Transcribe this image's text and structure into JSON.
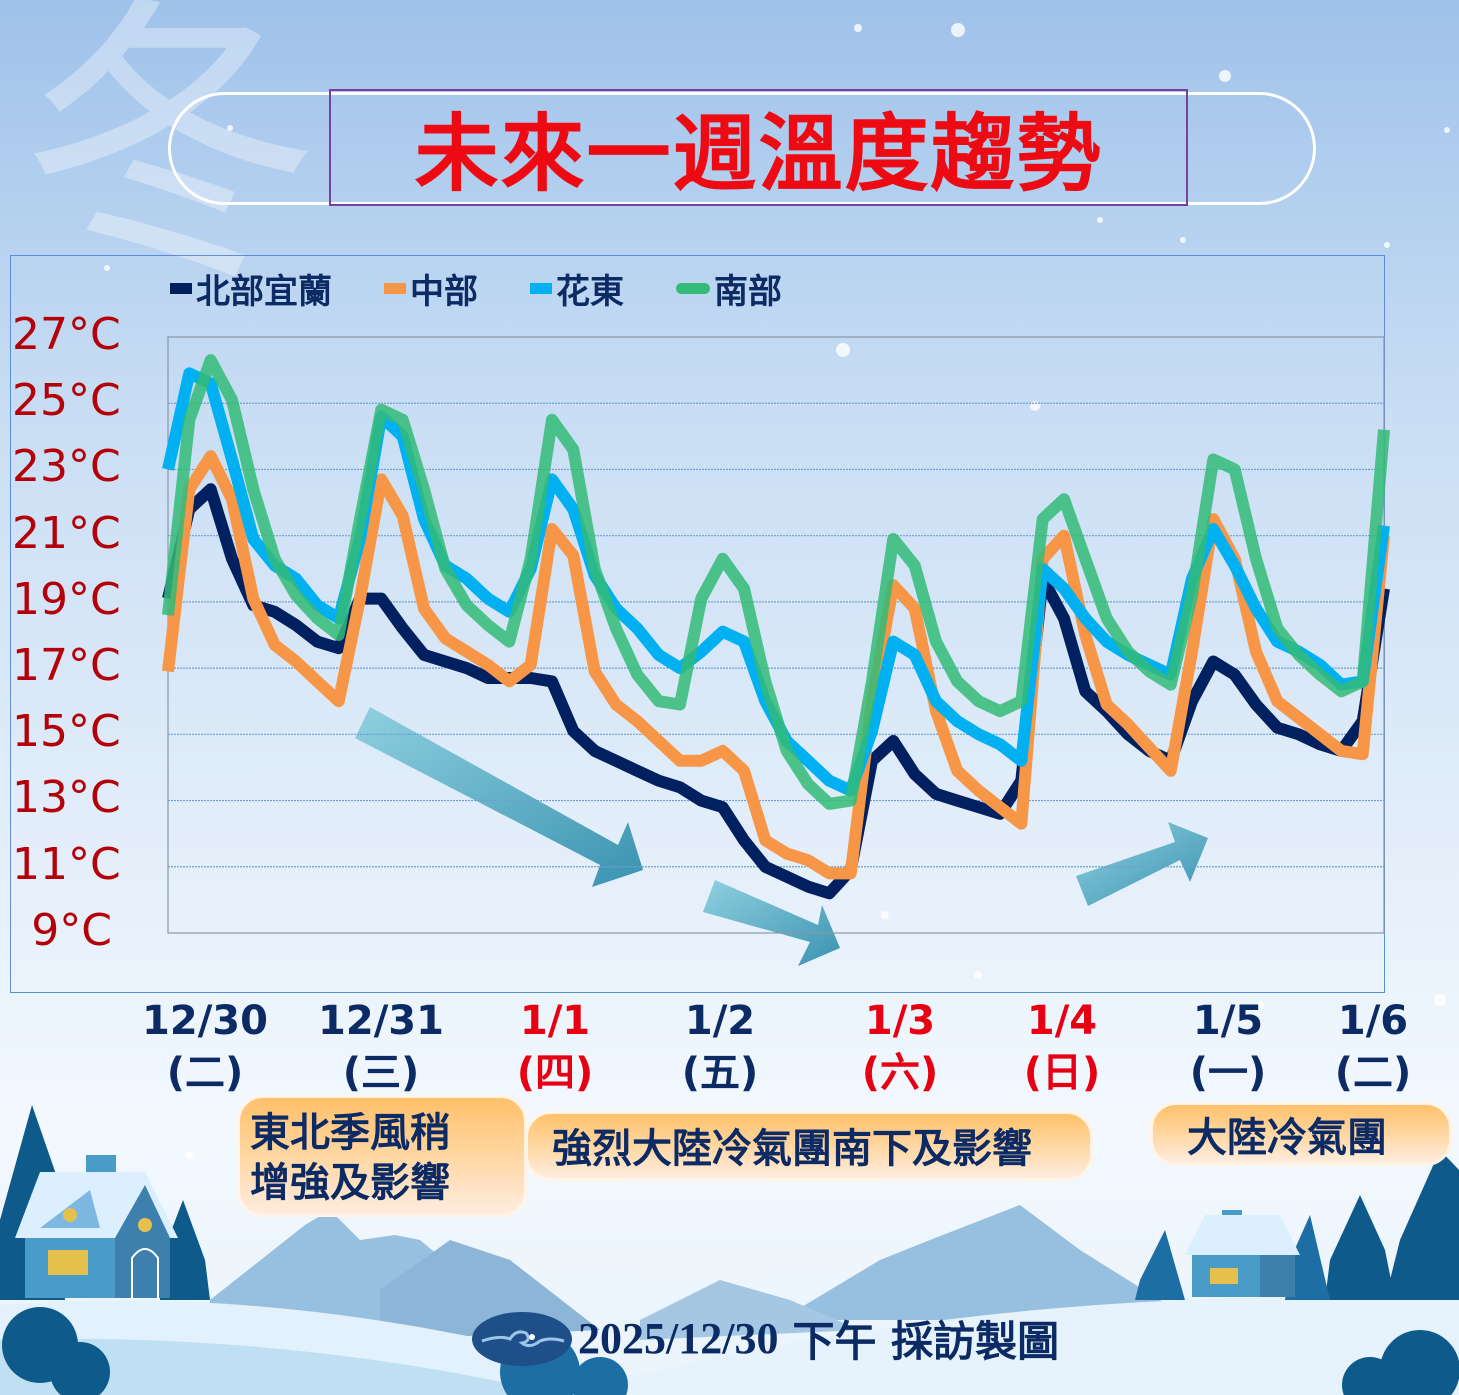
{
  "title": "未來一週溫度趨勢",
  "decor_character": "冬",
  "legend": [
    {
      "label": "北部宜蘭",
      "color": "#002060"
    },
    {
      "label": "中部",
      "color": "#f79646"
    },
    {
      "label": "花東",
      "color": "#00b0f0"
    },
    {
      "label": "南部",
      "color": "#33bb77"
    }
  ],
  "chart_data": {
    "type": "line",
    "ylim": [
      9,
      27
    ],
    "yticks": [
      "27°C",
      "25°C",
      "23°C",
      "21°C",
      "19°C",
      "17°C",
      "15°C",
      "13°C",
      "11°C",
      "9°C"
    ],
    "grid": true,
    "legend_position": "top-left",
    "x_tick_labels": [
      {
        "date": "12/30",
        "weekday": "(二)",
        "holiday": false
      },
      {
        "date": "12/31",
        "weekday": "(三)",
        "holiday": false
      },
      {
        "date": "1/1",
        "weekday": "(四)",
        "holiday": true
      },
      {
        "date": "1/2",
        "weekday": "(五)",
        "holiday": false
      },
      {
        "date": "1/3",
        "weekday": "(六)",
        "holiday": true
      },
      {
        "date": "1/4",
        "weekday": "(日)",
        "holiday": true
      },
      {
        "date": "1/5",
        "weekday": "(一)",
        "holiday": false
      },
      {
        "date": "1/6",
        "weekday": "(二)",
        "holiday": false
      }
    ],
    "series": [
      {
        "name": "北部宜蘭",
        "color": "#002060",
        "values": [
          19.1,
          21.8,
          22.4,
          20.3,
          18.9,
          18.7,
          18.3,
          17.8,
          17.6,
          19.1,
          19.1,
          18.2,
          17.4,
          17.2,
          17.0,
          16.7,
          16.7,
          16.7,
          16.6,
          15.1,
          14.5,
          14.2,
          13.9,
          13.6,
          13.4,
          13.0,
          12.8,
          11.8,
          11.0,
          10.7,
          10.4,
          10.2,
          10.9,
          14.2,
          14.8,
          13.8,
          13.2,
          13.0,
          12.8,
          12.6,
          13.6,
          19.7,
          18.5,
          16.3,
          15.7,
          15.0,
          14.5,
          14.2,
          16.0,
          17.2,
          16.8,
          15.9,
          15.2,
          15.0,
          14.7,
          14.5,
          15.4,
          19.4
        ]
      },
      {
        "name": "中部",
        "color": "#f79646",
        "values": [
          16.9,
          22.4,
          23.4,
          22.1,
          19.1,
          17.7,
          17.2,
          16.6,
          16.0,
          19.1,
          22.7,
          21.6,
          18.8,
          17.9,
          17.5,
          17.1,
          16.6,
          17.1,
          21.2,
          20.4,
          16.9,
          15.9,
          15.4,
          14.8,
          14.2,
          14.2,
          14.5,
          13.9,
          11.8,
          11.4,
          11.2,
          10.8,
          10.8,
          16.0,
          19.5,
          18.8,
          15.7,
          13.9,
          13.3,
          12.8,
          12.3,
          20.3,
          21.0,
          18.0,
          15.9,
          15.3,
          14.6,
          13.9,
          17.5,
          21.5,
          20.3,
          17.5,
          16.0,
          15.5,
          15.0,
          14.5,
          14.4,
          21.0
        ]
      },
      {
        "name": "花東",
        "color": "#00b0f0",
        "values": [
          23.0,
          25.9,
          25.6,
          23.3,
          20.9,
          20.1,
          19.7,
          18.9,
          18.5,
          20.9,
          24.6,
          24.0,
          21.5,
          20.1,
          19.7,
          19.1,
          18.7,
          20.0,
          22.7,
          21.8,
          19.8,
          18.8,
          18.2,
          17.4,
          17.0,
          17.5,
          18.1,
          17.8,
          16.0,
          14.8,
          14.2,
          13.6,
          13.3,
          15.1,
          17.8,
          17.4,
          16.0,
          15.4,
          15.0,
          14.7,
          14.2,
          20.0,
          19.4,
          18.5,
          17.8,
          17.4,
          17.1,
          16.8,
          19.7,
          21.2,
          20.1,
          18.8,
          17.8,
          17.5,
          17.1,
          16.5,
          16.6,
          21.3
        ]
      },
      {
        "name": "南部",
        "color": "#33bb77",
        "values": [
          18.6,
          24.5,
          26.3,
          25.1,
          22.4,
          20.3,
          19.2,
          18.5,
          18.0,
          21.5,
          24.8,
          24.5,
          22.4,
          20.0,
          18.9,
          18.3,
          17.8,
          20.3,
          24.5,
          23.6,
          20.0,
          18.2,
          16.8,
          16.0,
          15.9,
          19.1,
          20.3,
          19.4,
          16.6,
          14.5,
          13.5,
          12.9,
          13.0,
          16.6,
          20.9,
          20.1,
          17.8,
          16.6,
          16.0,
          15.7,
          16.0,
          21.5,
          22.1,
          20.3,
          18.5,
          17.5,
          16.9,
          16.5,
          19.2,
          23.3,
          23.0,
          20.3,
          18.2,
          17.4,
          16.8,
          16.3,
          16.6,
          24.2
        ]
      }
    ]
  },
  "annotations": [
    {
      "lines": [
        "東北季風稍",
        "增強及影響"
      ]
    },
    {
      "lines": [
        "強烈大陸冷氣團南下及影響"
      ]
    },
    {
      "lines": [
        "大陸冷氣團"
      ]
    }
  ],
  "footer": {
    "logo": "cloud-swirl-logo",
    "date": "2025/12/30",
    "text": "下午 採訪製圖"
  }
}
